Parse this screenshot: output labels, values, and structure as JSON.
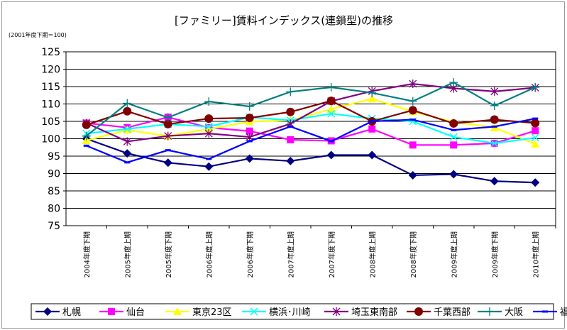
{
  "chart_data": {
    "type": "line",
    "title": "[ファミリー]賃料インデックス(連鎖型)の推移",
    "subtitle": "(2001年度下期＝100)",
    "xlabel": "",
    "ylabel": "",
    "ylim": [
      75,
      125
    ],
    "yticks": [
      75,
      80,
      85,
      90,
      95,
      100,
      105,
      110,
      115,
      120,
      125
    ],
    "grid": true,
    "legend_position": "bottom",
    "categories": [
      "2004年度下期",
      "2005年度上期",
      "2005年度下期",
      "2006年度上期",
      "2006年度下期",
      "2007年度上期",
      "2007年度下期",
      "2008年度上期",
      "2008年度下期",
      "2009年度上期",
      "2009年度下期",
      "2010年度上期"
    ],
    "series": [
      {
        "name": "札幌",
        "color": "#000080",
        "marker": "diamond",
        "values": [
          100,
          95.8,
          93.1,
          92,
          94.3,
          93.6,
          95.3,
          95.3,
          89.5,
          89.8,
          87.8,
          87.4
        ]
      },
      {
        "name": "仙台",
        "color": "#ff00ff",
        "marker": "square",
        "values": [
          104.5,
          103.2,
          106.2,
          103.2,
          102.2,
          99.7,
          99.4,
          102.8,
          98.2,
          98.2,
          98.7,
          102.3
        ]
      },
      {
        "name": "東京23区",
        "color": "#ffff00",
        "marker": "triangle",
        "values": [
          99.5,
          102.5,
          100.8,
          102.8,
          104.9,
          105.3,
          108.5,
          111.5,
          107.8,
          104.8,
          103.2,
          98.5
        ]
      },
      {
        "name": "横浜･川崎",
        "color": "#00ffff",
        "marker": "x",
        "values": [
          101.5,
          102.8,
          104.2,
          103.5,
          106.2,
          105.3,
          107.2,
          105.8,
          105,
          100.5,
          98.7,
          100.3
        ]
      },
      {
        "name": "埼玉東南部",
        "color": "#800080",
        "marker": "star",
        "values": [
          104.5,
          99.2,
          100.8,
          101.5,
          100.5,
          104.3,
          110.8,
          113.7,
          115.8,
          114.5,
          113.6,
          114.7
        ]
      },
      {
        "name": "千葉西部",
        "color": "#800000",
        "marker": "circle",
        "values": [
          104,
          107.9,
          104.2,
          105.8,
          106,
          107.7,
          110.9,
          105,
          108.2,
          104.4,
          105.5,
          104.5
        ]
      },
      {
        "name": "大阪",
        "color": "#008080",
        "marker": "plus",
        "values": [
          100.8,
          110.2,
          106.1,
          110.7,
          109.3,
          113.5,
          114.8,
          113.2,
          110.8,
          116.2,
          109.5,
          114.8
        ]
      },
      {
        "name": "福岡",
        "color": "#0000ff",
        "marker": "dash",
        "values": [
          98,
          93.2,
          96.7,
          94.2,
          99.3,
          103.5,
          99.3,
          105,
          105.5,
          102.5,
          103.5,
          105.8
        ]
      }
    ]
  }
}
